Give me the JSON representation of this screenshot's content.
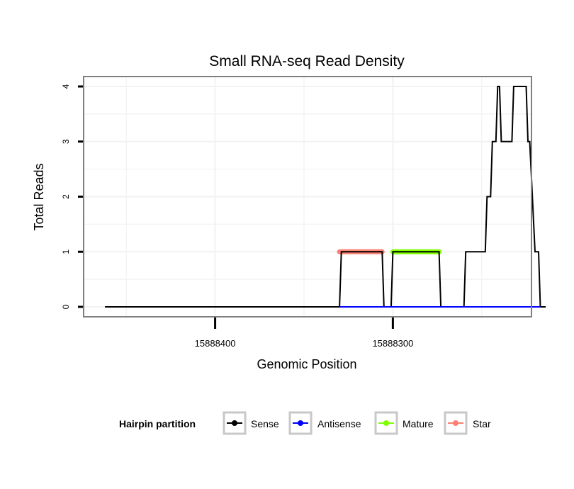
{
  "chart_data": {
    "type": "line",
    "title": "Small RNA-seq Read Density",
    "xlabel": "Genomic Position",
    "ylabel": "Total Reads",
    "x_reversed": true,
    "xlim": [
      15888474,
      15888222
    ],
    "ylim": [
      -0.18,
      4.18
    ],
    "x_ticks": [
      15888400,
      15888300
    ],
    "x_tick_labels": [
      "15888400",
      "15888300"
    ],
    "y_ticks": [
      0,
      1,
      2,
      3,
      4
    ],
    "y_tick_labels": [
      "0",
      "1",
      "2",
      "3",
      "4"
    ],
    "grid": true,
    "legend": {
      "title": "Hairpin partition",
      "position": "bottom",
      "entries": [
        "Sense",
        "Antisense",
        "Mature",
        "Star"
      ]
    },
    "series": [
      {
        "name": "Sense",
        "color": "#000000",
        "style": "thin-line",
        "points": [
          [
            15888462,
            0
          ],
          [
            15888330,
            0
          ],
          [
            15888329,
            1
          ],
          [
            15888306,
            1
          ],
          [
            15888305,
            0
          ],
          [
            15888301,
            0
          ],
          [
            15888300,
            1
          ],
          [
            15888274,
            1
          ],
          [
            15888273,
            0
          ],
          [
            15888260,
            0
          ],
          [
            15888259,
            1
          ],
          [
            15888248,
            1
          ],
          [
            15888247,
            2
          ],
          [
            15888245,
            2
          ],
          [
            15888244,
            3
          ],
          [
            15888242,
            3
          ],
          [
            15888241,
            4
          ],
          [
            15888240,
            4
          ],
          [
            15888239,
            3
          ],
          [
            15888233,
            3
          ],
          [
            15888232,
            4
          ],
          [
            15888225,
            4
          ],
          [
            15888224,
            3
          ],
          [
            15888223,
            3
          ],
          [
            15888220,
            1
          ],
          [
            15888218,
            1
          ],
          [
            15888217,
            0
          ],
          [
            15888214,
            0
          ]
        ]
      },
      {
        "name": "Antisense",
        "color": "#0000ff",
        "style": "thin-line",
        "points": [
          [
            15888330,
            0
          ],
          [
            15888217,
            0
          ]
        ]
      },
      {
        "name": "Mature",
        "color": "#7fff00",
        "style": "thick-segment",
        "points": [
          [
            15888300,
            1
          ],
          [
            15888274,
            1
          ]
        ]
      },
      {
        "name": "Star",
        "color": "#fa8072",
        "style": "thick-segment",
        "points": [
          [
            15888330,
            1
          ],
          [
            15888306,
            1
          ]
        ]
      }
    ]
  }
}
